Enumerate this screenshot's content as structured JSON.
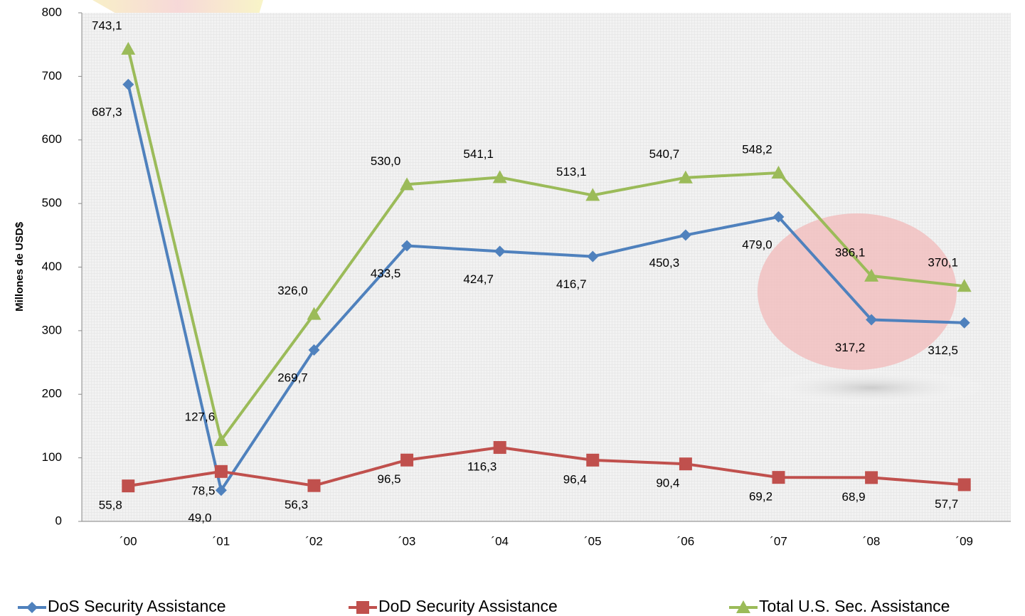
{
  "chart_data": {
    "type": "line",
    "y_label": "Millones de USD$",
    "categories": [
      "´00",
      "´01",
      "´02",
      "´03",
      "´04",
      "´05",
      "´06",
      "´07",
      "´08",
      "´09"
    ],
    "ylim": [
      0,
      800
    ],
    "yticks": [
      0,
      100,
      200,
      300,
      400,
      500,
      600,
      700,
      800
    ],
    "grid": false,
    "legend": "bottom",
    "series": [
      {
        "name": "DoS Security Assistance",
        "color": "#4f81bd",
        "marker": "diamond",
        "values": [
          687.3,
          49.0,
          269.7,
          433.5,
          424.7,
          416.7,
          450.3,
          479.0,
          317.2,
          312.5
        ],
        "value_labels": [
          "687,3",
          "49,0",
          "269,7",
          "433,5",
          "424,7",
          "416,7",
          "450,3",
          "479,0",
          "317,2",
          "312,5"
        ]
      },
      {
        "name": "DoD Security Assistance",
        "color": "#c0504d",
        "marker": "square",
        "values": [
          55.8,
          78.5,
          56.3,
          96.5,
          116.3,
          96.4,
          90.4,
          69.2,
          68.9,
          57.7
        ],
        "value_labels": [
          "55,8",
          "78,5",
          "56,3",
          "96,5",
          "116,3",
          "96,4",
          "90,4",
          "69,2",
          "68,9",
          "57,7"
        ]
      },
      {
        "name": "Total U.S. Sec. Assistance",
        "color": "#9bbb59",
        "marker": "triangle",
        "values": [
          743.1,
          127.6,
          326.0,
          530.0,
          541.1,
          513.1,
          540.7,
          548.2,
          386.1,
          370.1
        ],
        "value_labels": [
          "743,1",
          "127,6",
          "326,0",
          "530,0",
          "541,1",
          "513,1",
          "540,7",
          "548,2",
          "386,1",
          "370,1"
        ]
      }
    ]
  }
}
